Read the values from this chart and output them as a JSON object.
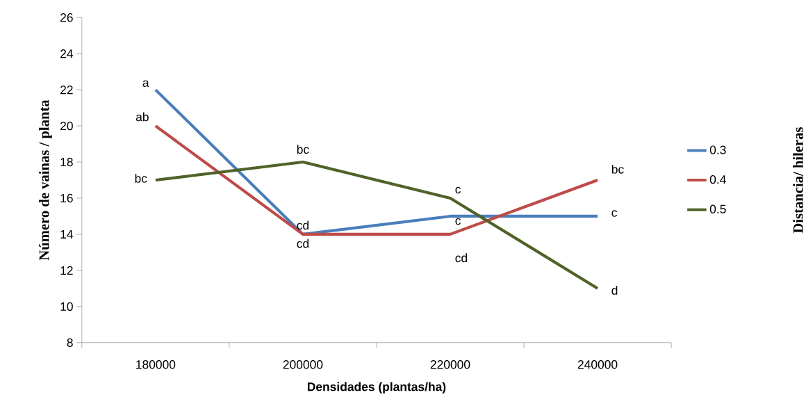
{
  "chart_data": {
    "type": "line",
    "xlabel": "Densidades (plantas/ha)",
    "ylabel": "Número de vainas / planta",
    "legend_title": "Distancia/ hileras",
    "x": [
      180000,
      200000,
      220000,
      240000
    ],
    "xlim": [
      170000,
      250000
    ],
    "xticks": [
      {
        "value": 170000,
        "label": null
      },
      180000,
      {
        "value": 190000,
        "label": null
      },
      200000,
      {
        "value": 210000,
        "label": null
      },
      220000,
      {
        "value": 230000,
        "label": null
      },
      240000,
      {
        "value": 250000,
        "label": null
      }
    ],
    "ylim": [
      8,
      26
    ],
    "yticks": [
      8,
      10,
      12,
      14,
      16,
      18,
      20,
      22,
      24,
      26
    ],
    "series": [
      {
        "name": "0.3",
        "color": "#4a7ebb",
        "values": [
          22,
          14,
          15,
          15
        ]
      },
      {
        "name": "0.4",
        "color": "#be4b48",
        "values": [
          20,
          14,
          14,
          17
        ]
      },
      {
        "name": "0.5",
        "color": "#4f6228",
        "values": [
          17,
          18,
          16,
          11
        ]
      }
    ],
    "annotations": [
      {
        "text": "a",
        "x": 180000,
        "y": 22
      },
      {
        "text": "ab",
        "x": 180000,
        "y": 20
      },
      {
        "text": "bc",
        "x": 180000,
        "y": 17
      },
      {
        "text": "bc",
        "x": 200000,
        "y": 18
      },
      {
        "text": "cd",
        "x": 200000,
        "y": 14
      },
      {
        "text": "cd",
        "x": 200000,
        "y": 14
      },
      {
        "text": "c",
        "x": 220000,
        "y": 16
      },
      {
        "text": "c",
        "x": 220000,
        "y": 15
      },
      {
        "text": "cd",
        "x": 220000,
        "y": 14
      },
      {
        "text": "c",
        "x": 240000,
        "y": 15
      },
      {
        "text": "bc",
        "x": 240000,
        "y": 17
      },
      {
        "text": "d",
        "x": 240000,
        "y": 11
      }
    ],
    "legend": "right",
    "grid": false,
    "marker": "none",
    "line_style": "solid"
  }
}
